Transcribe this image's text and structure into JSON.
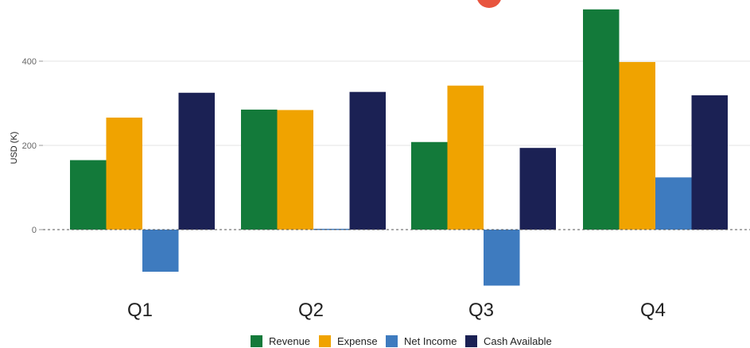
{
  "chart_data": {
    "type": "bar",
    "categories": [
      "Q1",
      "Q2",
      "Q3",
      "Q4"
    ],
    "series": [
      {
        "name": "Revenue",
        "color": "#137a3a",
        "values": [
          165,
          285,
          208,
          523
        ]
      },
      {
        "name": "Expense",
        "color": "#f0a300",
        "values": [
          266,
          284,
          342,
          398
        ]
      },
      {
        "name": "Net Income",
        "color": "#3e7bbf",
        "values": [
          -100,
          2,
          -133,
          124
        ]
      },
      {
        "name": "Cash Available",
        "color": "#1b2154",
        "values": [
          325,
          327,
          194,
          319
        ]
      }
    ],
    "title": "",
    "xlabel": "",
    "ylabel": "USD (K)",
    "yticks": [
      0,
      200,
      400
    ],
    "ytick_labels": [
      "0",
      "200",
      "400"
    ],
    "ylim": [
      -150,
      528
    ],
    "grid": true,
    "zero_line": "dashed",
    "legend_position": "bottom"
  },
  "marker_color": "#e8553f"
}
